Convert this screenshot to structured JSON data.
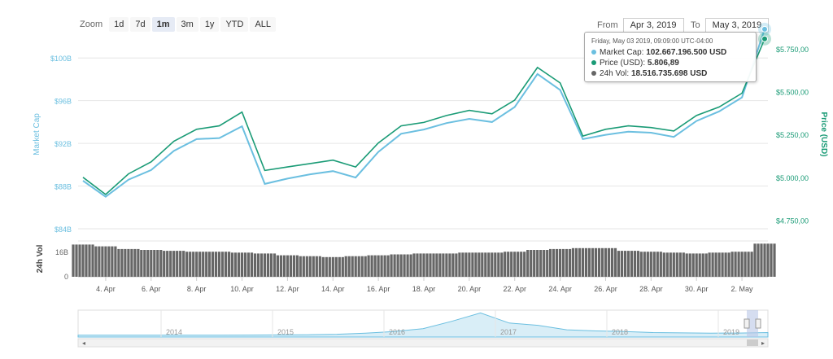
{
  "toolbar": {
    "zoom_label": "Zoom",
    "zoom_buttons": [
      "1d",
      "7d",
      "1m",
      "3m",
      "1y",
      "YTD",
      "ALL"
    ],
    "active_zoom": "1m",
    "from_label": "From",
    "from_value": "Apr 3, 2019",
    "to_label": "To",
    "to_value": "May 3, 2019"
  },
  "tooltip": {
    "date": "Friday, May 03 2019, 09:09:00 UTC-04:00",
    "rows": [
      {
        "label": "Market Cap:",
        "value": "102.667.196.500 USD",
        "color": "#6bbfe0"
      },
      {
        "label": "Price (USD):",
        "value": "5.806,89",
        "color": "#1a9b76"
      },
      {
        "label": "24h Vol:",
        "value": "18.516.735.698 USD",
        "color": "#666666"
      }
    ]
  },
  "chart_data": {
    "type": "line",
    "x": [
      "Apr 3",
      "Apr 4",
      "Apr 5",
      "Apr 6",
      "Apr 7",
      "Apr 8",
      "Apr 9",
      "Apr 10",
      "Apr 11",
      "Apr 12",
      "Apr 13",
      "Apr 14",
      "Apr 15",
      "Apr 16",
      "Apr 17",
      "Apr 18",
      "Apr 19",
      "Apr 20",
      "Apr 21",
      "Apr 22",
      "Apr 23",
      "Apr 24",
      "Apr 25",
      "Apr 26",
      "Apr 27",
      "Apr 28",
      "Apr 29",
      "Apr 30",
      "May 1",
      "May 2",
      "May 3"
    ],
    "x_ticks": [
      "4. Apr",
      "6. Apr",
      "8. Apr",
      "10. Apr",
      "12. Apr",
      "14. Apr",
      "16. Apr",
      "18. Apr",
      "20. Apr",
      "22. Apr",
      "24. Apr",
      "26. Apr",
      "28. Apr",
      "30. Apr",
      "2. May"
    ],
    "series": [
      {
        "name": "Market Cap",
        "color": "#6bbfe0",
        "values": [
          88.5,
          87.0,
          88.6,
          89.5,
          91.3,
          92.4,
          92.5,
          93.6,
          88.2,
          88.7,
          89.1,
          89.4,
          88.8,
          91.2,
          92.9,
          93.3,
          93.9,
          94.3,
          94.0,
          95.4,
          98.5,
          97.0,
          92.4,
          92.8,
          93.1,
          93.0,
          92.6,
          94.1,
          95.0,
          96.3,
          102.7
        ]
      },
      {
        "name": "Price (USD)",
        "color": "#1a9b76",
        "values": [
          5000,
          4900,
          5020,
          5090,
          5210,
          5280,
          5300,
          5380,
          5040,
          5060,
          5080,
          5100,
          5060,
          5200,
          5300,
          5320,
          5360,
          5390,
          5370,
          5450,
          5640,
          5550,
          5240,
          5280,
          5300,
          5290,
          5270,
          5360,
          5410,
          5490,
          5807
        ]
      }
    ],
    "left_axis": {
      "label": "Market Cap",
      "ticks": [
        "$84B",
        "$88B",
        "$92B",
        "$96B",
        "$100B"
      ],
      "range": [
        84,
        102
      ]
    },
    "right_axis": {
      "label": "Price (USD)",
      "ticks": [
        "$4.750,00",
        "$5.000,00",
        "$5.250,00",
        "$5.500,00",
        "$5.750,00"
      ],
      "range": [
        4700,
        5820
      ]
    },
    "volume": {
      "label": "24h Vol",
      "ticks": [
        "0",
        "16B"
      ],
      "color": "#666666",
      "values": [
        18,
        17,
        15.5,
        15,
        14.5,
        14,
        14,
        13.5,
        13,
        12,
        11.5,
        11,
        11.5,
        12,
        12.5,
        13,
        13,
        13.5,
        13.5,
        14,
        15,
        15.5,
        16,
        16,
        14.5,
        14,
        13.5,
        13,
        13.5,
        14,
        18.5
      ]
    },
    "navigator": {
      "years": [
        "2014",
        "2015",
        "2016",
        "2017",
        "2018",
        "2019"
      ],
      "values": [
        0.3,
        0.3,
        0.3,
        0.4,
        0.5,
        0.5,
        0.6,
        0.8,
        1.2,
        2.0,
        4.0,
        7.0,
        12.0,
        25.0,
        40.0,
        22.0,
        18.0,
        10.0,
        8.0,
        7.0,
        5.0,
        4.5,
        4.0,
        4.2,
        5.0
      ]
    }
  }
}
